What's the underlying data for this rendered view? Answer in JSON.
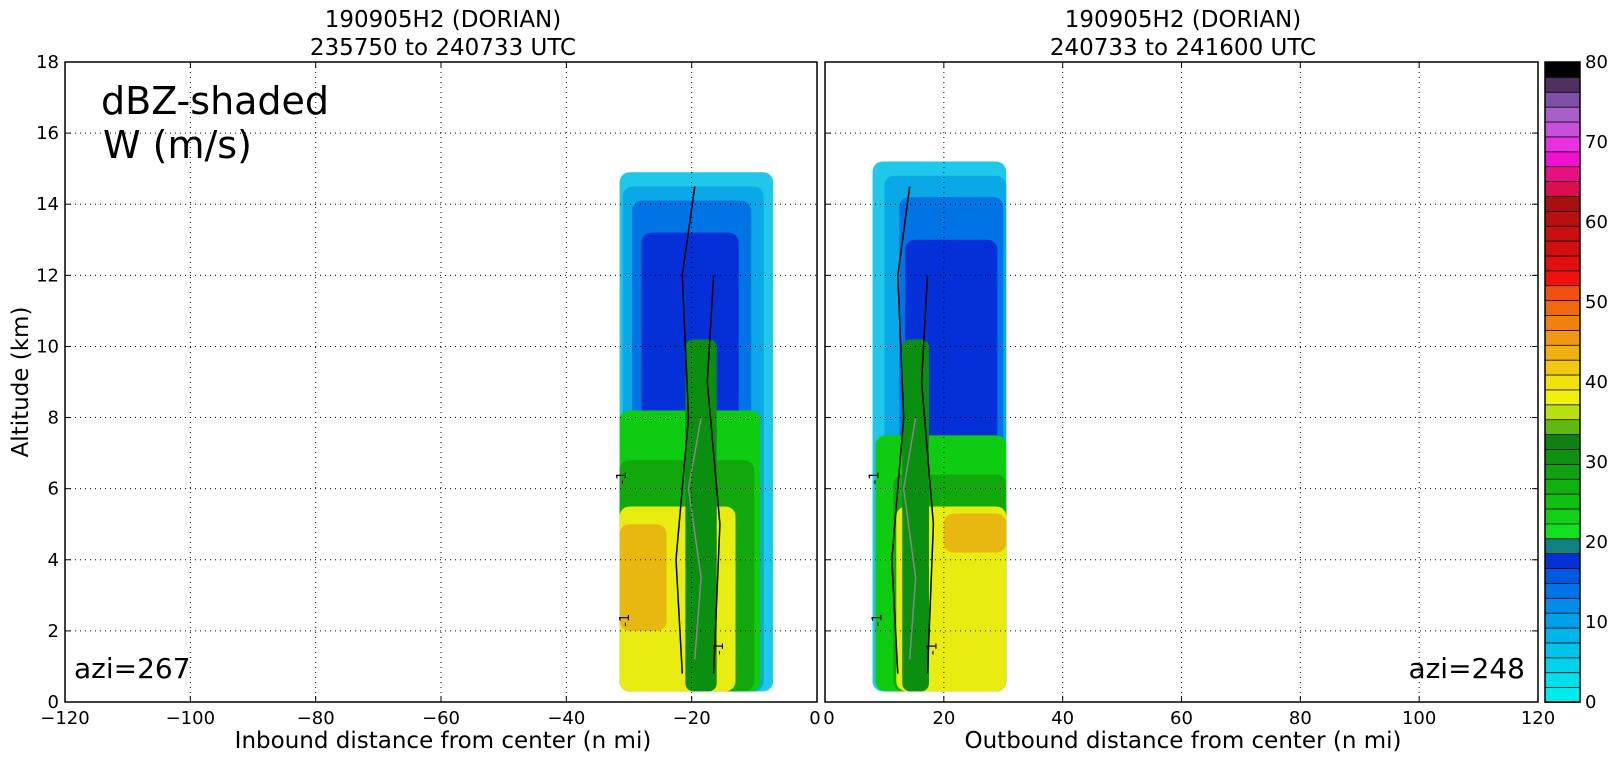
{
  "chart_data": [
    {
      "type": "heatmap",
      "panel": "inbound",
      "title_line1": "190905H2 (DORIAN)",
      "title_line2": "235750 to 240733 UTC",
      "xlabel": "Inbound distance from center (n mi)",
      "ylabel": "Altitude (km)",
      "xlim": [
        -120,
        0
      ],
      "ylim": [
        0,
        18
      ],
      "xticks": [
        "−120",
        "−100",
        "−80",
        "−60",
        "−40",
        "−20",
        "0"
      ],
      "xtick_values": [
        -120,
        -100,
        -80,
        -60,
        -40,
        -20,
        0
      ],
      "yticks": [
        "0",
        "2",
        "4",
        "6",
        "8",
        "10",
        "12",
        "14",
        "16",
        "18"
      ],
      "ytick_values": [
        0,
        2,
        4,
        6,
        8,
        10,
        12,
        14,
        16,
        18
      ],
      "grid": true,
      "annotation_main_1": "dBZ-shaded",
      "annotation_main_2": "W (m/s)",
      "annotation_azi": "azi=267",
      "contour_label": "-1",
      "reflectivity_layers": [
        {
          "dbz": 12,
          "color": "#1fc8e8",
          "x0": -31.5,
          "x1": -7,
          "y0": 0.3,
          "y1": 14.9
        },
        {
          "dbz": 14,
          "color": "#0aa8e6",
          "x0": -31,
          "x1": -8.5,
          "y0": 0.3,
          "y1": 14.5
        },
        {
          "dbz": 16,
          "color": "#0074e4",
          "x0": -29.5,
          "x1": -10.5,
          "y0": 0.3,
          "y1": 14.1
        },
        {
          "dbz": 18,
          "color": "#0530d8",
          "x0": -28,
          "x1": -12.5,
          "y0": 0.3,
          "y1": 13.2
        },
        {
          "dbz": 20,
          "color": "#0fcc12",
          "x0": -31.5,
          "x1": -9,
          "y0": 0.3,
          "y1": 8.2
        },
        {
          "dbz": 24,
          "color": "#10a80a",
          "x0": -31.5,
          "x1": -10,
          "y0": 0.3,
          "y1": 6.8
        },
        {
          "dbz": 34,
          "color": "#e8ec10",
          "x0": -31.5,
          "x1": -13,
          "y0": 0.3,
          "y1": 5.5
        },
        {
          "dbz": 38,
          "color": "#e8b810",
          "x0": -31.5,
          "x1": -24,
          "y0": 2.0,
          "y1": 5.0
        }
      ],
      "updraft_core": {
        "dbz": 26,
        "color": "#0a8f10",
        "x0": -21,
        "x1": -16,
        "y0": 0.3,
        "y1": 10.2
      }
    },
    {
      "type": "heatmap",
      "panel": "outbound",
      "title_line1": "190905H2 (DORIAN)",
      "title_line2": "240733 to 241600 UTC",
      "xlabel": "Outbound distance from center (n mi)",
      "xlim": [
        0,
        120
      ],
      "ylim": [
        0,
        18
      ],
      "xticks": [
        "0",
        "20",
        "40",
        "60",
        "80",
        "100",
        "120"
      ],
      "xtick_values": [
        0,
        20,
        40,
        60,
        80,
        100,
        120
      ],
      "grid": true,
      "annotation_azi": "azi=248",
      "contour_label": "-1",
      "reflectivity_layers": [
        {
          "dbz": 12,
          "color": "#1fc8e8",
          "x0": 8,
          "x1": 30.5,
          "y0": 0.3,
          "y1": 15.2
        },
        {
          "dbz": 14,
          "color": "#0aa8e6",
          "x0": 10,
          "x1": 30.5,
          "y0": 0.3,
          "y1": 14.8
        },
        {
          "dbz": 16,
          "color": "#0074e4",
          "x0": 12.5,
          "x1": 30,
          "y0": 0.3,
          "y1": 14.2
        },
        {
          "dbz": 18,
          "color": "#0530d8",
          "x0": 13.5,
          "x1": 29,
          "y0": 0.3,
          "y1": 13.0
        },
        {
          "dbz": 20,
          "color": "#0fcc12",
          "x0": 8.5,
          "x1": 30.5,
          "y0": 0.3,
          "y1": 7.5
        },
        {
          "dbz": 24,
          "color": "#10a80a",
          "x0": 11.5,
          "x1": 30.5,
          "y0": 0.3,
          "y1": 6.4
        },
        {
          "dbz": 34,
          "color": "#e8ec10",
          "x0": 12,
          "x1": 30.5,
          "y0": 0.3,
          "y1": 5.5
        },
        {
          "dbz": 38,
          "color": "#e8b810",
          "x0": 20,
          "x1": 30.5,
          "y0": 4.2,
          "y1": 5.3
        }
      ],
      "updraft_core": {
        "dbz": 26,
        "color": "#0a8f10",
        "x0": 13,
        "x1": 17.5,
        "y0": 0.3,
        "y1": 10.2
      }
    }
  ],
  "colorbar": {
    "range": [
      0,
      80
    ],
    "ticks": [
      "0",
      "10",
      "20",
      "30",
      "40",
      "50",
      "60",
      "70",
      "80"
    ],
    "tick_values": [
      0,
      10,
      20,
      30,
      40,
      50,
      60,
      70,
      80
    ],
    "colors": [
      "#00ecec",
      "#00e0ec",
      "#00d2ec",
      "#00c4ec",
      "#00b4ec",
      "#00a0e8",
      "#008ce8",
      "#0074e6",
      "#0058e0",
      "#0530d8",
      "#108080",
      "#10e020",
      "#10d018",
      "#10c010",
      "#10b010",
      "#10a010",
      "#109010",
      "#108010",
      "#60b810",
      "#b8e010",
      "#f0f010",
      "#f0e010",
      "#f0c810",
      "#f0b010",
      "#f09810",
      "#f08010",
      "#f06810",
      "#f05010",
      "#f01010",
      "#e01010",
      "#d01010",
      "#c81010",
      "#b81010",
      "#a81010",
      "#d81050",
      "#e81080",
      "#f010d0",
      "#e830e0",
      "#c850d8",
      "#a860c8",
      "#8050a8",
      "#503060",
      "#000000"
    ]
  }
}
